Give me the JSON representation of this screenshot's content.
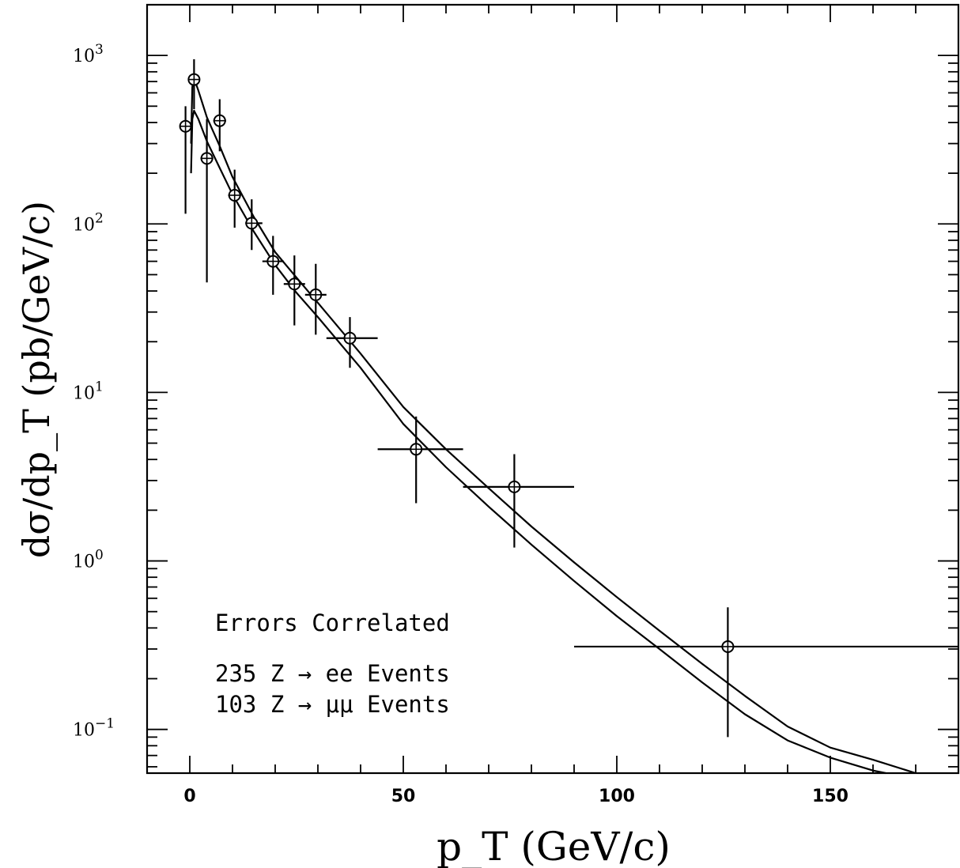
{
  "chart_data": {
    "type": "scatter",
    "title": "",
    "xlabel": "p_T (GeV/c)",
    "ylabel": "dσ/dp_T (pb/GeV/c)",
    "xlim": [
      -10,
      180
    ],
    "ylim": [
      0.055,
      2000
    ],
    "yscale": "log",
    "grid": false,
    "xticks": [
      0,
      50,
      100,
      150
    ],
    "yticks": [
      {
        "value": 0.1,
        "mantissa": "10",
        "exp": "−1"
      },
      {
        "value": 1,
        "mantissa": "10",
        "exp": "0"
      },
      {
        "value": 10,
        "mantissa": "10",
        "exp": "1"
      },
      {
        "value": 100,
        "mantissa": "10",
        "exp": "2"
      },
      {
        "value": 1000,
        "mantissa": "10",
        "exp": "3"
      }
    ],
    "annotations": [
      "Errors Correlated",
      "235 Z → ee Events",
      "103 Z → μμ Events"
    ],
    "points": [
      {
        "x": -1,
        "y": 380,
        "xlo": -2,
        "xhi": 0,
        "ylo": 115,
        "yhi": 500
      },
      {
        "x": 1,
        "y": 720,
        "xlo": 0,
        "xhi": 2,
        "ylo": 480,
        "yhi": 950
      },
      {
        "x": 4,
        "y": 245,
        "xlo": 2.5,
        "xhi": 5.5,
        "ylo": 45,
        "yhi": 420
      },
      {
        "x": 7,
        "y": 410,
        "xlo": 5.5,
        "xhi": 8.5,
        "ylo": 270,
        "yhi": 550
      },
      {
        "x": 10.5,
        "y": 148,
        "xlo": 9,
        "xhi": 12,
        "ylo": 95,
        "yhi": 210
      },
      {
        "x": 14.5,
        "y": 101,
        "xlo": 13,
        "xhi": 17,
        "ylo": 70,
        "yhi": 140
      },
      {
        "x": 19.5,
        "y": 60,
        "xlo": 17,
        "xhi": 22,
        "ylo": 38,
        "yhi": 85
      },
      {
        "x": 24.5,
        "y": 44,
        "xlo": 22,
        "xhi": 27,
        "ylo": 25,
        "yhi": 65
      },
      {
        "x": 29.5,
        "y": 38,
        "xlo": 27,
        "xhi": 32,
        "ylo": 22,
        "yhi": 58
      },
      {
        "x": 37.5,
        "y": 21,
        "xlo": 32,
        "xhi": 44,
        "ylo": 14,
        "yhi": 28
      },
      {
        "x": 53,
        "y": 4.6,
        "xlo": 44,
        "xhi": 64,
        "ylo": 2.2,
        "yhi": 7.2
      },
      {
        "x": 76,
        "y": 2.75,
        "xlo": 64,
        "xhi": 90,
        "ylo": 1.2,
        "yhi": 4.3
      },
      {
        "x": 126,
        "y": 0.31,
        "xlo": 90,
        "xhi": 180,
        "ylo": 0.09,
        "yhi": 0.53
      }
    ],
    "series": [
      {
        "values": [
          [
            0.3,
            300
          ],
          [
            0.6,
            650
          ],
          [
            1,
            730
          ],
          [
            2,
            620
          ],
          [
            4,
            430
          ],
          [
            7,
            290
          ],
          [
            10,
            190
          ],
          [
            15,
            110
          ],
          [
            20,
            68
          ],
          [
            25,
            48
          ],
          [
            30,
            34
          ],
          [
            40,
            17
          ],
          [
            50,
            8.2
          ],
          [
            60,
            4.6
          ],
          [
            70,
            2.7
          ],
          [
            80,
            1.6
          ],
          [
            90,
            0.98
          ],
          [
            100,
            0.61
          ],
          [
            110,
            0.385
          ],
          [
            120,
            0.245
          ],
          [
            130,
            0.158
          ],
          [
            140,
            0.104
          ],
          [
            150,
            0.078
          ],
          [
            160,
            0.066
          ],
          [
            170,
            0.055
          ]
        ]
      },
      {
        "values": [
          [
            0.3,
            200
          ],
          [
            0.6,
            420
          ],
          [
            1,
            470
          ],
          [
            2,
            420
          ],
          [
            4,
            310
          ],
          [
            7,
            215
          ],
          [
            10,
            150
          ],
          [
            15,
            90
          ],
          [
            20,
            57
          ],
          [
            25,
            39
          ],
          [
            30,
            28
          ],
          [
            40,
            14
          ],
          [
            50,
            6.5
          ],
          [
            60,
            3.6
          ],
          [
            70,
            2.1
          ],
          [
            80,
            1.25
          ],
          [
            90,
            0.76
          ],
          [
            100,
            0.47
          ],
          [
            110,
            0.3
          ],
          [
            120,
            0.19
          ],
          [
            130,
            0.123
          ],
          [
            140,
            0.086
          ],
          [
            150,
            0.068
          ],
          [
            160,
            0.057
          ],
          [
            163,
            0.055
          ]
        ]
      }
    ]
  }
}
